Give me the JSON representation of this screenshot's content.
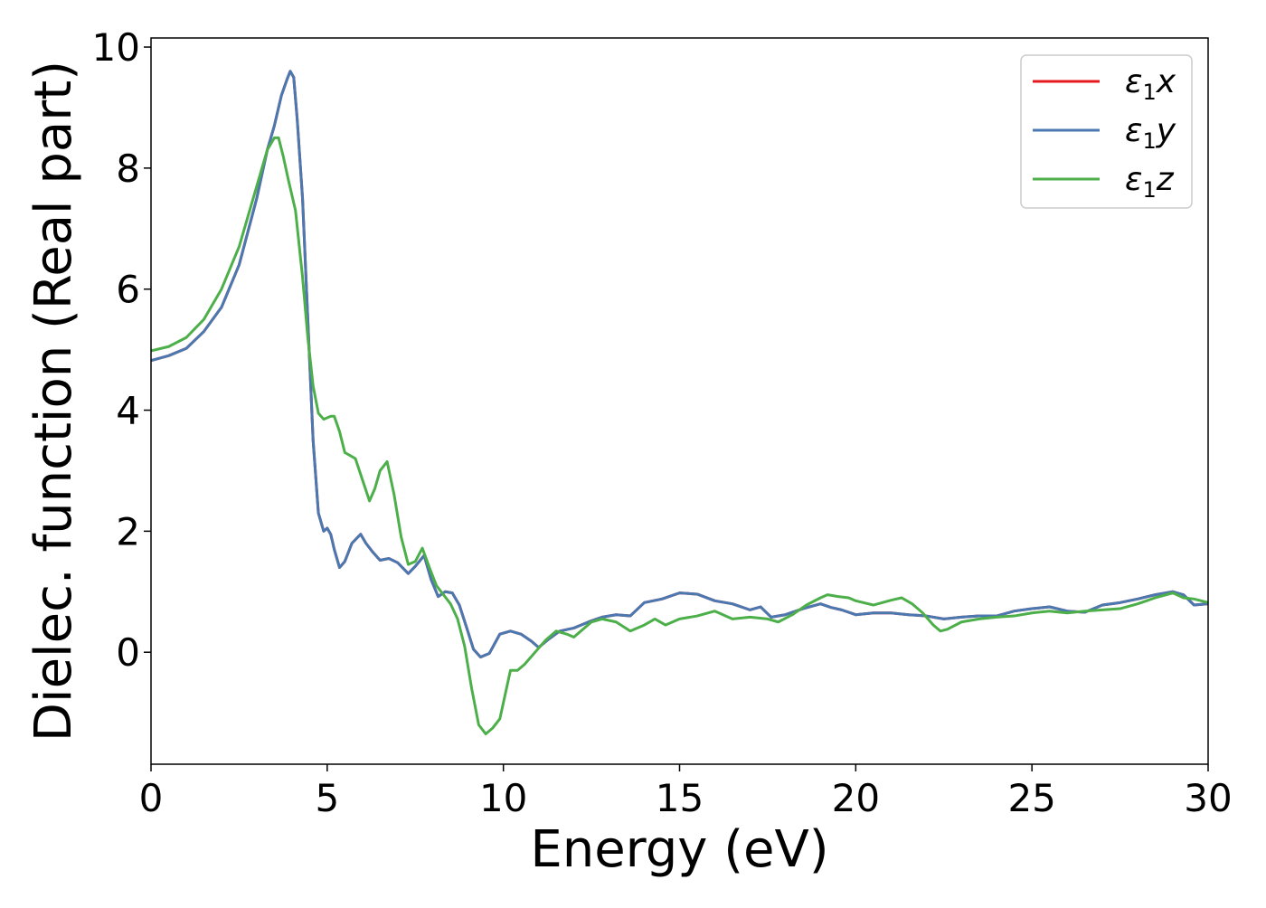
{
  "chart_data": {
    "type": "line",
    "title": "",
    "xlabel": "Energy (eV)",
    "ylabel": "Dielec. function (Real part)",
    "xlim": [
      0,
      30
    ],
    "ylim": [
      -1.85,
      10.15
    ],
    "xticks": [
      0,
      5,
      10,
      15,
      20,
      25,
      30
    ],
    "yticks": [
      0,
      2,
      4,
      6,
      8,
      10
    ],
    "grid": false,
    "legend_position": "top-right",
    "series": [
      {
        "name": "ε1x",
        "legend_base": "ε",
        "legend_sub": "1",
        "legend_var": "x",
        "color": "#e41a1c",
        "x": [
          0,
          0.5,
          1.0,
          1.5,
          2.0,
          2.5,
          3.0,
          3.3,
          3.5,
          3.7,
          3.85,
          3.95,
          4.05,
          4.15,
          4.3,
          4.45,
          4.6,
          4.75,
          4.9,
          5.0,
          5.1,
          5.2,
          5.35,
          5.5,
          5.7,
          5.95,
          6.1,
          6.3,
          6.5,
          6.75,
          7.0,
          7.3,
          7.5,
          7.75,
          7.95,
          8.15,
          8.35,
          8.55,
          8.75,
          8.95,
          9.15,
          9.35,
          9.6,
          9.9,
          10.2,
          10.5,
          10.8,
          11.0,
          11.25,
          11.6,
          12.0,
          12.5,
          12.8,
          13.2,
          13.6,
          14.0,
          14.5,
          15.0,
          15.5,
          16.0,
          16.5,
          17.0,
          17.3,
          17.6,
          18.0,
          18.5,
          19.0,
          19.3,
          19.6,
          20.0,
          20.5,
          21.0,
          21.5,
          22.0,
          22.5,
          23.0,
          23.5,
          24.0,
          24.5,
          25.0,
          25.5,
          26.0,
          26.5,
          27.0,
          27.5,
          28.0,
          28.5,
          29.0,
          29.3,
          29.6,
          30.0
        ],
        "y": [
          4.82,
          4.9,
          5.02,
          5.3,
          5.7,
          6.4,
          7.5,
          8.3,
          8.7,
          9.2,
          9.45,
          9.6,
          9.5,
          8.8,
          7.5,
          5.5,
          3.5,
          2.3,
          2.0,
          2.05,
          1.95,
          1.7,
          1.4,
          1.5,
          1.8,
          1.95,
          1.8,
          1.65,
          1.52,
          1.55,
          1.48,
          1.3,
          1.42,
          1.6,
          1.2,
          0.92,
          1.0,
          0.98,
          0.78,
          0.42,
          0.05,
          -0.08,
          -0.02,
          0.3,
          0.35,
          0.3,
          0.18,
          0.08,
          0.2,
          0.35,
          0.4,
          0.52,
          0.58,
          0.62,
          0.6,
          0.82,
          0.88,
          0.98,
          0.96,
          0.85,
          0.8,
          0.7,
          0.75,
          0.58,
          0.62,
          0.72,
          0.8,
          0.74,
          0.7,
          0.62,
          0.65,
          0.65,
          0.62,
          0.6,
          0.55,
          0.58,
          0.6,
          0.6,
          0.68,
          0.72,
          0.75,
          0.68,
          0.66,
          0.78,
          0.82,
          0.88,
          0.95,
          1.0,
          0.95,
          0.78,
          0.8
        ]
      },
      {
        "name": "ε1y",
        "legend_base": "ε",
        "legend_sub": "1",
        "legend_var": "y",
        "color": "#4a78b0",
        "x": [
          0,
          0.5,
          1.0,
          1.5,
          2.0,
          2.5,
          3.0,
          3.3,
          3.5,
          3.7,
          3.85,
          3.95,
          4.05,
          4.15,
          4.3,
          4.45,
          4.6,
          4.75,
          4.9,
          5.0,
          5.1,
          5.2,
          5.35,
          5.5,
          5.7,
          5.95,
          6.1,
          6.3,
          6.5,
          6.75,
          7.0,
          7.3,
          7.5,
          7.75,
          7.95,
          8.15,
          8.35,
          8.55,
          8.75,
          8.95,
          9.15,
          9.35,
          9.6,
          9.9,
          10.2,
          10.5,
          10.8,
          11.0,
          11.25,
          11.6,
          12.0,
          12.5,
          12.8,
          13.2,
          13.6,
          14.0,
          14.5,
          15.0,
          15.5,
          16.0,
          16.5,
          17.0,
          17.3,
          17.6,
          18.0,
          18.5,
          19.0,
          19.3,
          19.6,
          20.0,
          20.5,
          21.0,
          21.5,
          22.0,
          22.5,
          23.0,
          23.5,
          24.0,
          24.5,
          25.0,
          25.5,
          26.0,
          26.5,
          27.0,
          27.5,
          28.0,
          28.5,
          29.0,
          29.3,
          29.6,
          30.0
        ],
        "y": [
          4.82,
          4.9,
          5.02,
          5.3,
          5.7,
          6.4,
          7.5,
          8.3,
          8.7,
          9.2,
          9.45,
          9.6,
          9.5,
          8.8,
          7.5,
          5.5,
          3.5,
          2.3,
          2.0,
          2.05,
          1.95,
          1.7,
          1.4,
          1.5,
          1.8,
          1.95,
          1.8,
          1.65,
          1.52,
          1.55,
          1.48,
          1.3,
          1.42,
          1.6,
          1.2,
          0.92,
          1.0,
          0.98,
          0.78,
          0.42,
          0.05,
          -0.08,
          -0.02,
          0.3,
          0.35,
          0.3,
          0.18,
          0.08,
          0.2,
          0.35,
          0.4,
          0.52,
          0.58,
          0.62,
          0.6,
          0.82,
          0.88,
          0.98,
          0.96,
          0.85,
          0.8,
          0.7,
          0.75,
          0.58,
          0.62,
          0.72,
          0.8,
          0.74,
          0.7,
          0.62,
          0.65,
          0.65,
          0.62,
          0.6,
          0.55,
          0.58,
          0.6,
          0.6,
          0.68,
          0.72,
          0.75,
          0.68,
          0.66,
          0.78,
          0.82,
          0.88,
          0.95,
          1.0,
          0.95,
          0.78,
          0.8
        ]
      },
      {
        "name": "ε1z",
        "legend_base": "ε",
        "legend_sub": "1",
        "legend_var": "z",
        "color": "#4daf4a",
        "x": [
          0,
          0.5,
          1.0,
          1.5,
          2.0,
          2.5,
          3.0,
          3.3,
          3.5,
          3.62,
          3.75,
          3.9,
          4.1,
          4.3,
          4.45,
          4.6,
          4.75,
          4.9,
          5.1,
          5.2,
          5.35,
          5.5,
          5.65,
          5.8,
          6.0,
          6.2,
          6.35,
          6.5,
          6.7,
          6.9,
          7.1,
          7.3,
          7.5,
          7.7,
          7.9,
          8.1,
          8.3,
          8.5,
          8.7,
          8.9,
          9.1,
          9.3,
          9.5,
          9.7,
          9.9,
          10.05,
          10.2,
          10.4,
          10.6,
          10.9,
          11.2,
          11.5,
          11.8,
          12.0,
          12.2,
          12.5,
          12.8,
          13.2,
          13.6,
          14.0,
          14.3,
          14.6,
          15.0,
          15.5,
          16.0,
          16.5,
          17.0,
          17.5,
          17.8,
          18.2,
          18.6,
          19.0,
          19.2,
          19.5,
          19.8,
          20.0,
          20.5,
          21.0,
          21.3,
          21.6,
          21.9,
          22.2,
          22.4,
          22.6,
          23.0,
          23.5,
          24.0,
          24.5,
          25.0,
          25.5,
          26.0,
          26.5,
          27.0,
          27.5,
          28.0,
          28.5,
          29.0,
          29.3,
          29.6,
          30.0
        ],
        "y": [
          4.98,
          5.05,
          5.2,
          5.5,
          6.0,
          6.7,
          7.7,
          8.3,
          8.5,
          8.5,
          8.2,
          7.8,
          7.3,
          6.2,
          5.2,
          4.4,
          3.95,
          3.85,
          3.9,
          3.9,
          3.65,
          3.3,
          3.25,
          3.2,
          2.85,
          2.5,
          2.7,
          3.0,
          3.15,
          2.6,
          1.9,
          1.45,
          1.5,
          1.72,
          1.4,
          1.1,
          0.95,
          0.8,
          0.55,
          0.1,
          -0.6,
          -1.2,
          -1.35,
          -1.25,
          -1.1,
          -0.7,
          -0.3,
          -0.3,
          -0.2,
          0.0,
          0.2,
          0.35,
          0.3,
          0.25,
          0.35,
          0.5,
          0.55,
          0.5,
          0.35,
          0.45,
          0.55,
          0.45,
          0.55,
          0.6,
          0.68,
          0.55,
          0.58,
          0.55,
          0.5,
          0.62,
          0.78,
          0.9,
          0.95,
          0.92,
          0.9,
          0.85,
          0.78,
          0.86,
          0.9,
          0.8,
          0.65,
          0.45,
          0.35,
          0.38,
          0.5,
          0.55,
          0.58,
          0.6,
          0.65,
          0.68,
          0.65,
          0.68,
          0.7,
          0.72,
          0.8,
          0.9,
          0.98,
          0.9,
          0.88,
          0.82
        ]
      }
    ]
  }
}
